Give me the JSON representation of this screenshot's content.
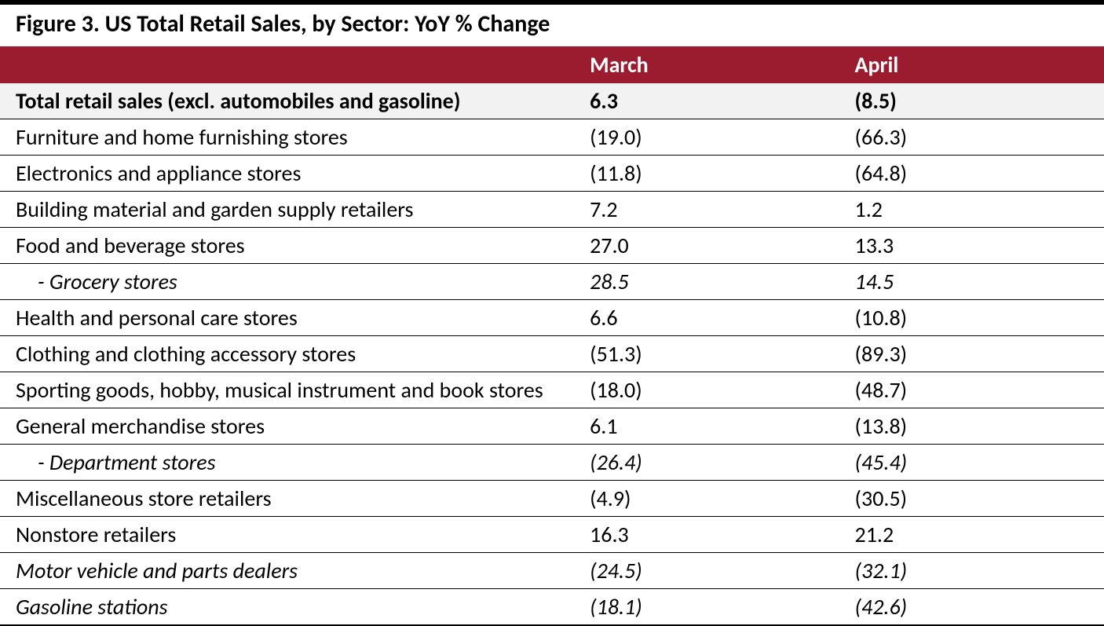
{
  "figure": {
    "title": "Figure 3. US Total Retail Sales, by Sector: YoY % Change",
    "header_bg": "#9b1c2e",
    "header_text_color": "#ffffff",
    "columns": [
      "",
      "March",
      "April"
    ],
    "rows": [
      {
        "label": "Total retail sales (excl. automobiles and gasoline)",
        "march": "6.3",
        "april": "(8.5)",
        "total": true,
        "italic": false,
        "indent": false
      },
      {
        "label": "Furniture and home furnishing stores",
        "march": "(19.0)",
        "april": "(66.3)",
        "total": false,
        "italic": false,
        "indent": false
      },
      {
        "label": "Electronics and appliance stores",
        "march": "(11.8)",
        "april": "(64.8)",
        "total": false,
        "italic": false,
        "indent": false
      },
      {
        "label": "Building material and garden supply retailers",
        "march": "7.2",
        "april": "1.2",
        "total": false,
        "italic": false,
        "indent": false
      },
      {
        "label": "Food and beverage stores",
        "march": "27.0",
        "april": "13.3",
        "total": false,
        "italic": false,
        "indent": false
      },
      {
        "label": "- Grocery stores",
        "march": "28.5",
        "april": "14.5",
        "total": false,
        "italic": true,
        "indent": true
      },
      {
        "label": "Health and personal care stores",
        "march": "6.6",
        "april": "(10.8)",
        "total": false,
        "italic": false,
        "indent": false
      },
      {
        "label": "Clothing and clothing accessory stores",
        "march": "(51.3)",
        "april": "(89.3)",
        "total": false,
        "italic": false,
        "indent": false
      },
      {
        "label": "Sporting goods, hobby, musical instrument and book stores",
        "march": "(18.0)",
        "april": "(48.7)",
        "total": false,
        "italic": false,
        "indent": false
      },
      {
        "label": "General merchandise stores",
        "march": "6.1",
        "april": "(13.8)",
        "total": false,
        "italic": false,
        "indent": false
      },
      {
        "label": "- Department stores",
        "march": "(26.4)",
        "april": "(45.4)",
        "total": false,
        "italic": true,
        "indent": true
      },
      {
        "label": "Miscellaneous store retailers",
        "march": "(4.9)",
        "april": "(30.5)",
        "total": false,
        "italic": false,
        "indent": false
      },
      {
        "label": "Nonstore retailers",
        "march": "16.3",
        "april": "21.2",
        "total": false,
        "italic": false,
        "indent": false
      },
      {
        "label": "Motor vehicle and parts dealers",
        "march": "(24.5)",
        "april": "(32.1)",
        "total": false,
        "italic": true,
        "indent": false
      },
      {
        "label": "Gasoline stations",
        "march": "(18.1)",
        "april": "(42.6)",
        "total": false,
        "italic": true,
        "indent": false
      }
    ],
    "fonts": {
      "title_pt": 30,
      "cell_pt": 28,
      "title_weight": 700
    }
  }
}
